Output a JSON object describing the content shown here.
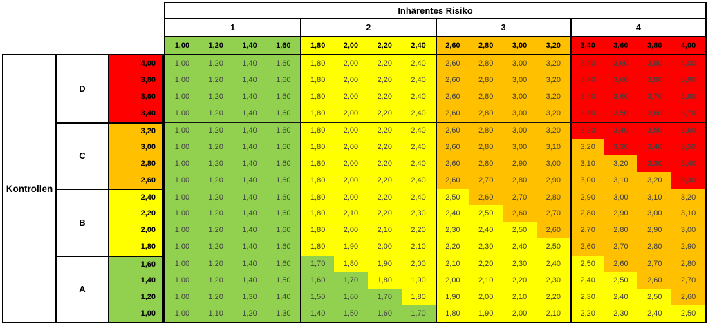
{
  "header": {
    "title": "Inhärentes Risiko",
    "groups": [
      {
        "label": "1",
        "color": "#92D050",
        "values": [
          "1,00",
          "1,20",
          "1,40",
          "1,60"
        ]
      },
      {
        "label": "2",
        "color": "#FFFF00",
        "values": [
          "1,80",
          "2,00",
          "2,20",
          "2,40"
        ]
      },
      {
        "label": "3",
        "color": "#FFC000",
        "values": [
          "2,60",
          "2,80",
          "3,00",
          "3,20"
        ]
      },
      {
        "label": "4",
        "color": "#FF0000",
        "values": [
          "3,40",
          "3,60",
          "3,80",
          "4,00"
        ]
      }
    ]
  },
  "left": {
    "title": "Kontrollen",
    "groups": [
      {
        "label": "D",
        "color": "#FF0000",
        "values": [
          "4,00",
          "3,80",
          "3,60",
          "3,40"
        ]
      },
      {
        "label": "C",
        "color": "#FFC000",
        "values": [
          "3,20",
          "3,00",
          "2,80",
          "2,60"
        ]
      },
      {
        "label": "B",
        "color": "#FFFF00",
        "values": [
          "2,40",
          "2,20",
          "2,00",
          "1,80"
        ]
      },
      {
        "label": "A",
        "color": "#92D050",
        "values": [
          "1,60",
          "1,40",
          "1,20",
          "1,00"
        ]
      }
    ]
  },
  "colors": {
    "green": "#92D050",
    "yellow": "#FFFF00",
    "orange": "#FFC000",
    "red": "#FF0000",
    "matrix_text": "#404040",
    "border": "#000000"
  },
  "color_thresholds": [
    {
      "max": 1.7,
      "color": "#92D050"
    },
    {
      "max": 2.5,
      "color": "#FFFF00"
    },
    {
      "max": 3.2,
      "color": "#FFC000"
    },
    {
      "max": 99,
      "color": "#FF0000"
    }
  ],
  "chart_data": {
    "type": "heatmap",
    "title": "Inhärentes Risiko",
    "row_axis_label": "Kontrollen",
    "x": [
      1.0,
      1.2,
      1.4,
      1.6,
      1.8,
      2.0,
      2.2,
      2.4,
      2.6,
      2.8,
      3.0,
      3.2,
      3.4,
      3.6,
      3.8,
      4.0
    ],
    "y": [
      4.0,
      3.8,
      3.6,
      3.4,
      3.2,
      3.0,
      2.8,
      2.6,
      2.4,
      2.2,
      2.0,
      1.8,
      1.6,
      1.4,
      1.2,
      1.0
    ],
    "col_group_labels": [
      "1",
      "2",
      "3",
      "4"
    ],
    "row_group_labels": [
      "D",
      "C",
      "B",
      "A"
    ],
    "color_rule": "green <= 1,70 ; yellow 1,80-2,50 ; orange 2,60-3,20 ; red >= 3,30",
    "cells": [
      [
        "1,00",
        "1,20",
        "1,40",
        "1,60",
        "1,80",
        "2,00",
        "2,20",
        "2,40",
        "2,60",
        "2,80",
        "3,00",
        "3,20",
        "3,40",
        "3,60",
        "3,80",
        "4,00"
      ],
      [
        "1,00",
        "1,20",
        "1,40",
        "1,60",
        "1,80",
        "2,00",
        "2,20",
        "2,40",
        "2,60",
        "2,80",
        "3,00",
        "3,20",
        "3,40",
        "3,60",
        "3,80",
        "3,90"
      ],
      [
        "1,00",
        "1,20",
        "1,40",
        "1,60",
        "1,80",
        "2,00",
        "2,20",
        "2,40",
        "2,60",
        "2,80",
        "3,00",
        "3,20",
        "3,40",
        "3,60",
        "3,70",
        "3,80"
      ],
      [
        "1,00",
        "1,20",
        "1,40",
        "1,60",
        "1,80",
        "2,00",
        "2,20",
        "2,40",
        "2,60",
        "2,80",
        "3,00",
        "3,20",
        "3,40",
        "3,50",
        "3,60",
        "3,70"
      ],
      [
        "1,00",
        "1,20",
        "1,40",
        "1,60",
        "1,80",
        "2,00",
        "2,20",
        "2,40",
        "2,60",
        "2,80",
        "3,00",
        "3,20",
        "3,30",
        "3,40",
        "3,50",
        "3,60"
      ],
      [
        "1,00",
        "1,20",
        "1,40",
        "1,60",
        "1,80",
        "2,00",
        "2,20",
        "2,40",
        "2,60",
        "2,80",
        "3,00",
        "3,10",
        "3,20",
        "3,30",
        "3,40",
        "3,50"
      ],
      [
        "1,00",
        "1,20",
        "1,40",
        "1,60",
        "1,80",
        "2,00",
        "2,20",
        "2,40",
        "2,60",
        "2,80",
        "2,90",
        "3,00",
        "3,10",
        "3,20",
        "3,30",
        "3,40"
      ],
      [
        "1,00",
        "1,20",
        "1,40",
        "1,60",
        "1,80",
        "2,00",
        "2,20",
        "2,40",
        "2,60",
        "2,70",
        "2,80",
        "2,90",
        "3,00",
        "3,10",
        "3,20",
        "3,30"
      ],
      [
        "1,00",
        "1,20",
        "1,40",
        "1,60",
        "1,80",
        "2,00",
        "2,20",
        "2,40",
        "2,50",
        "2,60",
        "2,70",
        "2,80",
        "2,90",
        "3,00",
        "3,10",
        "3,20"
      ],
      [
        "1,00",
        "1,20",
        "1,40",
        "1,60",
        "1,80",
        "2,10",
        "2,20",
        "2,30",
        "2,40",
        "2,50",
        "2,60",
        "2,70",
        "2,80",
        "2,90",
        "3,00",
        "3,10"
      ],
      [
        "1,00",
        "1,20",
        "1,40",
        "1,60",
        "1,80",
        "2,00",
        "2,10",
        "2,20",
        "2,30",
        "2,40",
        "2,50",
        "2,60",
        "2,70",
        "2,80",
        "2,90",
        "3,00"
      ],
      [
        "1,00",
        "1,20",
        "1,40",
        "1,60",
        "1,80",
        "1,90",
        "2,00",
        "2,10",
        "2,20",
        "2,30",
        "2,40",
        "2,50",
        "2,60",
        "2,70",
        "2,80",
        "2,90"
      ],
      [
        "1,00",
        "1,20",
        "1,40",
        "1,60",
        "1,70",
        "1,80",
        "1,90",
        "2,00",
        "2,10",
        "2,20",
        "2,30",
        "2,40",
        "2,50",
        "2,60",
        "2,70",
        "2,80"
      ],
      [
        "1,00",
        "1,20",
        "1,40",
        "1,50",
        "1,60",
        "1,70",
        "1,80",
        "1,90",
        "2,00",
        "2,10",
        "2,20",
        "2,30",
        "2,40",
        "2,50",
        "2,60",
        "2,70"
      ],
      [
        "1,00",
        "1,20",
        "1,30",
        "1,40",
        "1,50",
        "1,60",
        "1,70",
        "1,80",
        "1,90",
        "2,00",
        "2,10",
        "2,20",
        "2,30",
        "2,40",
        "2,50",
        "2,60"
      ],
      [
        "1,00",
        "1,10",
        "1,20",
        "1,30",
        "1,40",
        "1,50",
        "1,60",
        "1,70",
        "1,80",
        "1,90",
        "2,00",
        "2,10",
        "2,20",
        "2,30",
        "2,40",
        "2,50"
      ]
    ]
  }
}
